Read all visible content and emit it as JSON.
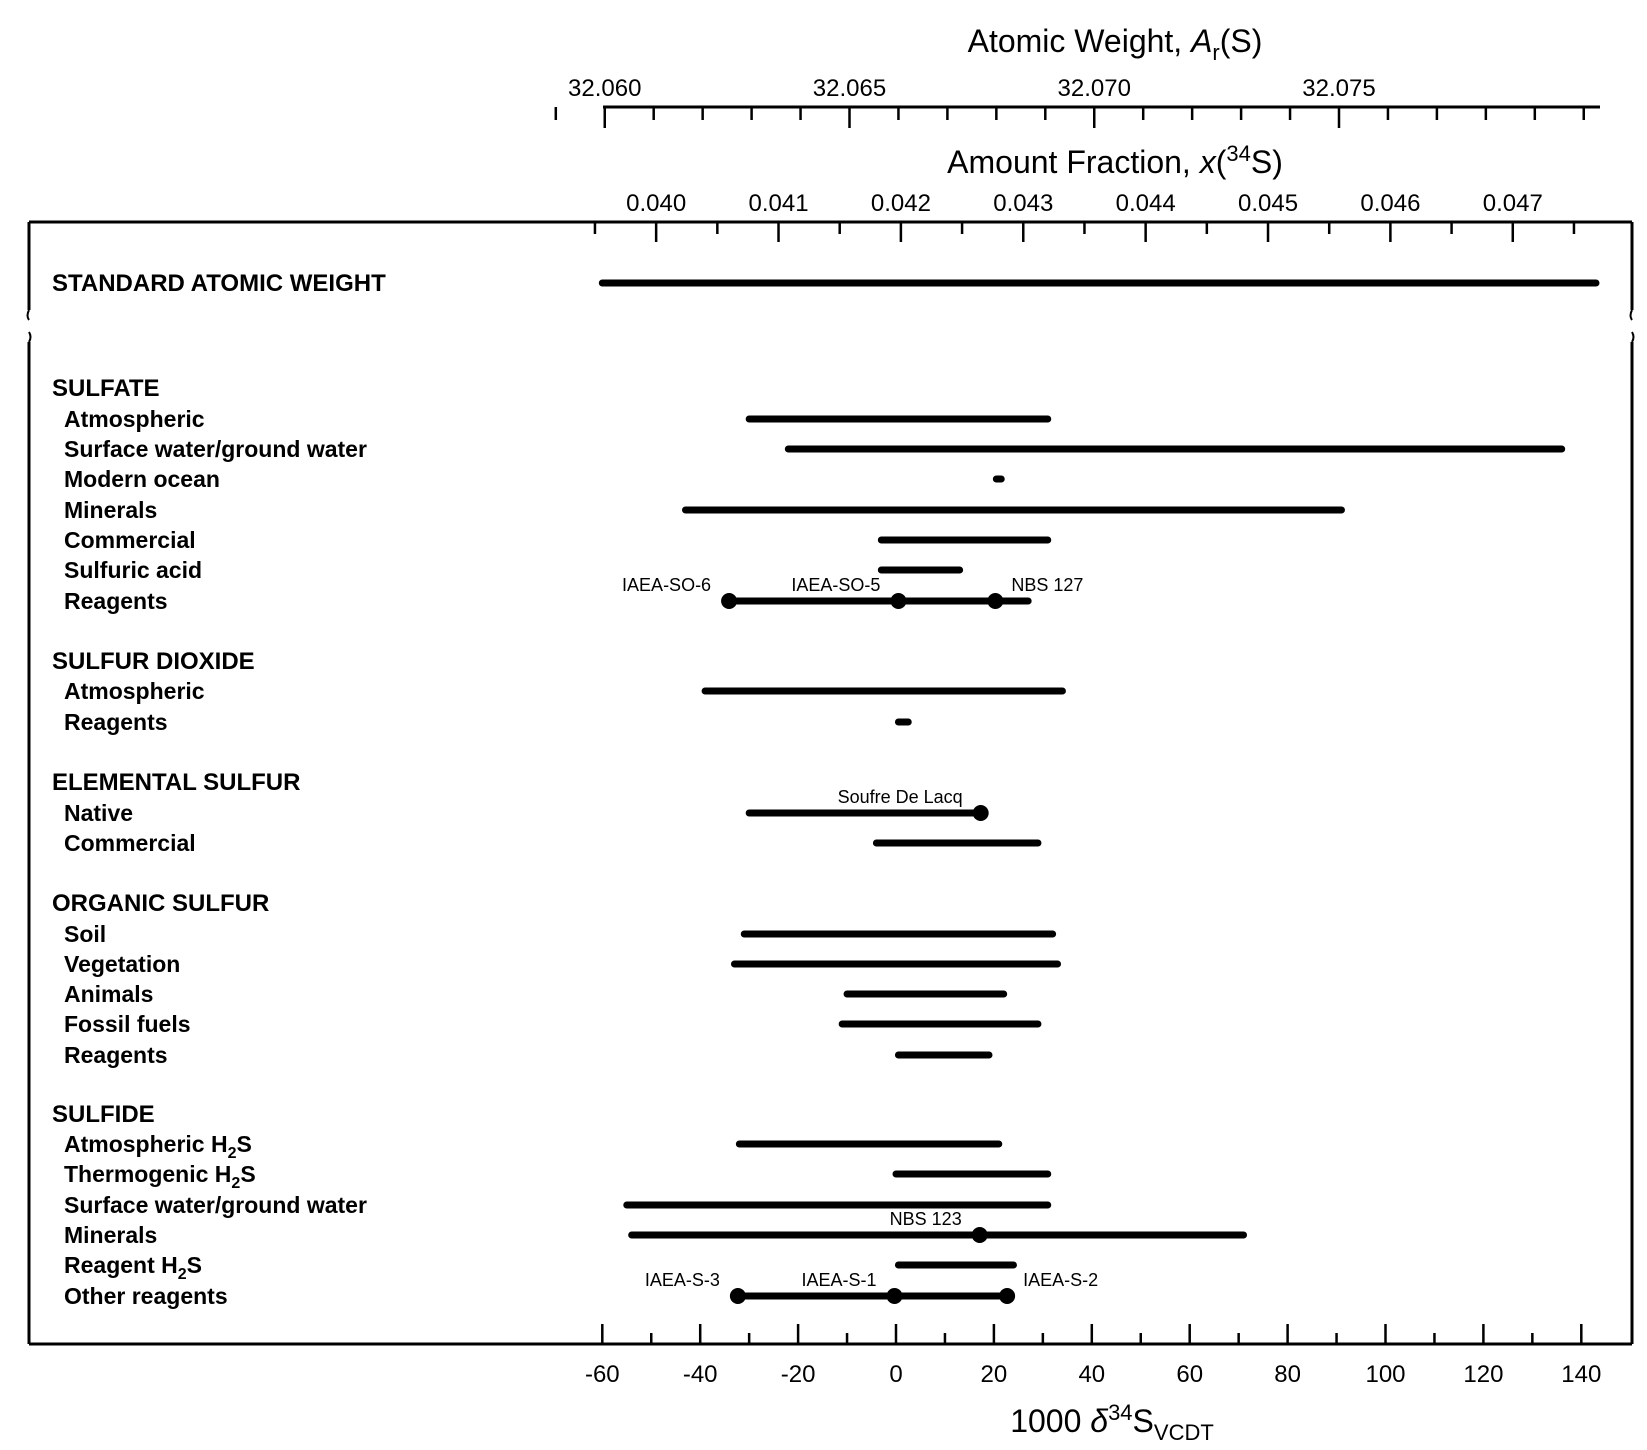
{
  "chart_data": {
    "type": "range",
    "xlabel": {
      "prefix": "1000 δ",
      "sup": "34",
      "main": "S",
      "sub": "VCDT"
    },
    "xlim": [
      -62,
      143
    ],
    "xticks": [
      -60,
      -40,
      -20,
      0,
      20,
      40,
      60,
      80,
      100,
      120,
      140
    ],
    "top_axis_1": {
      "label": {
        "prefix": "Atomic Weight, ",
        "italic": "A",
        "sub": "r",
        "suffix": "(S)"
      },
      "ticks": [
        "32.060",
        "32.065",
        "32.070",
        "32.075"
      ],
      "tick_delta_values": [
        -59.5,
        -9.5,
        40.5,
        90.5
      ]
    },
    "top_axis_2": {
      "label": {
        "prefix": "Amount Fraction, ",
        "italic": "x",
        "open": "(",
        "sup": "34",
        "suffix": "S)"
      },
      "ticks": [
        "0.040",
        "0.041",
        "0.042",
        "0.043",
        "0.044",
        "0.045",
        "0.046",
        "0.047"
      ],
      "tick_delta_values": [
        -49,
        -24,
        1,
        26,
        51,
        76,
        101,
        126
      ]
    },
    "rows": [
      {
        "label": "STANDARD ATOMIC WEIGHT",
        "kind": "heading",
        "range": [
          -60,
          143
        ]
      },
      {
        "label": "SULFATE",
        "kind": "heading"
      },
      {
        "label": "Atmospheric",
        "range": [
          -30,
          31
        ]
      },
      {
        "label": "Surface water/ground water",
        "range": [
          -22,
          136
        ]
      },
      {
        "label": "Modern ocean",
        "range": [
          20.5,
          21.5
        ]
      },
      {
        "label": "Minerals",
        "range": [
          -43,
          91
        ]
      },
      {
        "label": "Commercial",
        "range": [
          -3,
          31
        ]
      },
      {
        "label": "Sulfuric acid",
        "range": [
          -3,
          13
        ]
      },
      {
        "label": "Reagents",
        "range": [
          -34,
          27
        ],
        "refs": [
          {
            "name": "IAEA-SO-6",
            "value": -34.1,
            "anchor": "end"
          },
          {
            "name": "IAEA-SO-5",
            "value": 0.5,
            "anchor": "end"
          },
          {
            "name": "NBS 127",
            "value": 20.3,
            "anchor": "start"
          }
        ]
      },
      {
        "label": "SULFUR DIOXIDE",
        "kind": "heading"
      },
      {
        "label": "Atmospheric",
        "range": [
          -39,
          34
        ]
      },
      {
        "label": "Reagents",
        "range": [
          0.5,
          2.5
        ]
      },
      {
        "label": "ELEMENTAL SULFUR",
        "kind": "heading"
      },
      {
        "label": "Native",
        "range": [
          -30,
          17
        ],
        "refs": [
          {
            "name": "Soufre De Lacq",
            "value": 17.3,
            "anchor": "end"
          }
        ]
      },
      {
        "label": "Commercial",
        "range": [
          -4,
          29
        ]
      },
      {
        "label": "ORGANIC SULFUR",
        "kind": "heading"
      },
      {
        "label": "Soil",
        "range": [
          -31,
          32
        ]
      },
      {
        "label": "Vegetation",
        "range": [
          -33,
          33
        ]
      },
      {
        "label": "Animals",
        "range": [
          -10,
          22
        ]
      },
      {
        "label": "Fossil fuels",
        "range": [
          -11,
          29
        ]
      },
      {
        "label": "Reagents",
        "range": [
          0.5,
          19
        ]
      },
      {
        "label": "SULFIDE",
        "kind": "heading"
      },
      {
        "label": "Atmospheric H",
        "sub": "2",
        "suffix": "S",
        "range": [
          -32,
          21
        ]
      },
      {
        "label": "Thermogenic H",
        "sub": "2",
        "suffix": "S",
        "range": [
          0,
          31
        ]
      },
      {
        "label": "Surface water/ground water",
        "range": [
          -55,
          31
        ]
      },
      {
        "label": "Minerals",
        "range": [
          -54,
          71
        ],
        "refs": [
          {
            "name": "NBS 123",
            "value": 17.1,
            "anchor": "end"
          }
        ]
      },
      {
        "label": "Reagent H",
        "sub": "2",
        "suffix": "S",
        "range": [
          0.5,
          24
        ]
      },
      {
        "label": "Other reagents",
        "range": [
          -32,
          23
        ],
        "refs": [
          {
            "name": "IAEA-S-3",
            "value": -32.3,
            "anchor": "end"
          },
          {
            "name": "IAEA-S-1",
            "value": -0.3,
            "anchor": "end"
          },
          {
            "name": "IAEA-S-2",
            "value": 22.7,
            "anchor": "start"
          }
        ]
      }
    ],
    "grid": false
  }
}
